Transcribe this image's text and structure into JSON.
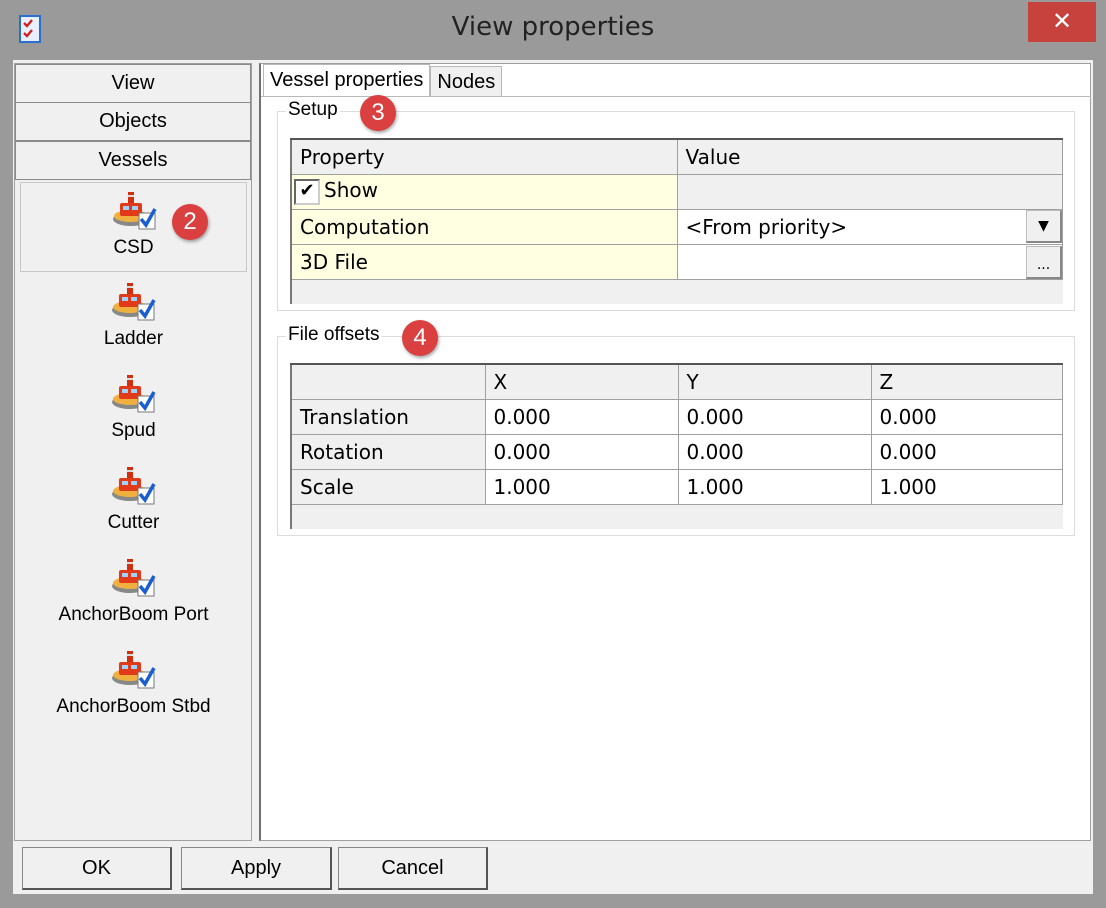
{
  "window": {
    "title": "View properties",
    "close_icon": "close-icon"
  },
  "sidebar": {
    "nav": [
      "View",
      "Objects",
      "Vessels"
    ],
    "items": [
      {
        "label": "CSD",
        "selected": true
      },
      {
        "label": "Ladder"
      },
      {
        "label": "Spud"
      },
      {
        "label": "Cutter"
      },
      {
        "label": "AnchorBoom Port"
      },
      {
        "label": "AnchorBoom Stbd"
      }
    ],
    "item_icon": "vessel-check-icon",
    "badge": "2"
  },
  "tabs": [
    {
      "label": "Vessel properties",
      "active": true
    },
    {
      "label": "Nodes"
    }
  ],
  "setup": {
    "title": "Setup",
    "badge": "3",
    "headers": [
      "Property",
      "Value"
    ],
    "show": {
      "label": "Show",
      "checked": true
    },
    "computation": {
      "label": "Computation",
      "value": "<From priority>"
    },
    "file": {
      "label": "3D File",
      "value": "",
      "browse": "..."
    }
  },
  "offsets": {
    "title": "File offsets",
    "badge": "4",
    "headers": [
      "",
      "X",
      "Y",
      "Z"
    ],
    "rows": [
      [
        "Translation",
        "0.000",
        "0.000",
        "0.000"
      ],
      [
        "Rotation",
        "0.000",
        "0.000",
        "0.000"
      ],
      [
        "Scale",
        "1.000",
        "1.000",
        "1.000"
      ]
    ]
  },
  "buttons": {
    "ok": "OK",
    "apply": "Apply",
    "cancel": "Cancel"
  },
  "colors": {
    "badge": "#d9403f",
    "close": "#c7413d",
    "property_cell": "#ffffe2"
  }
}
